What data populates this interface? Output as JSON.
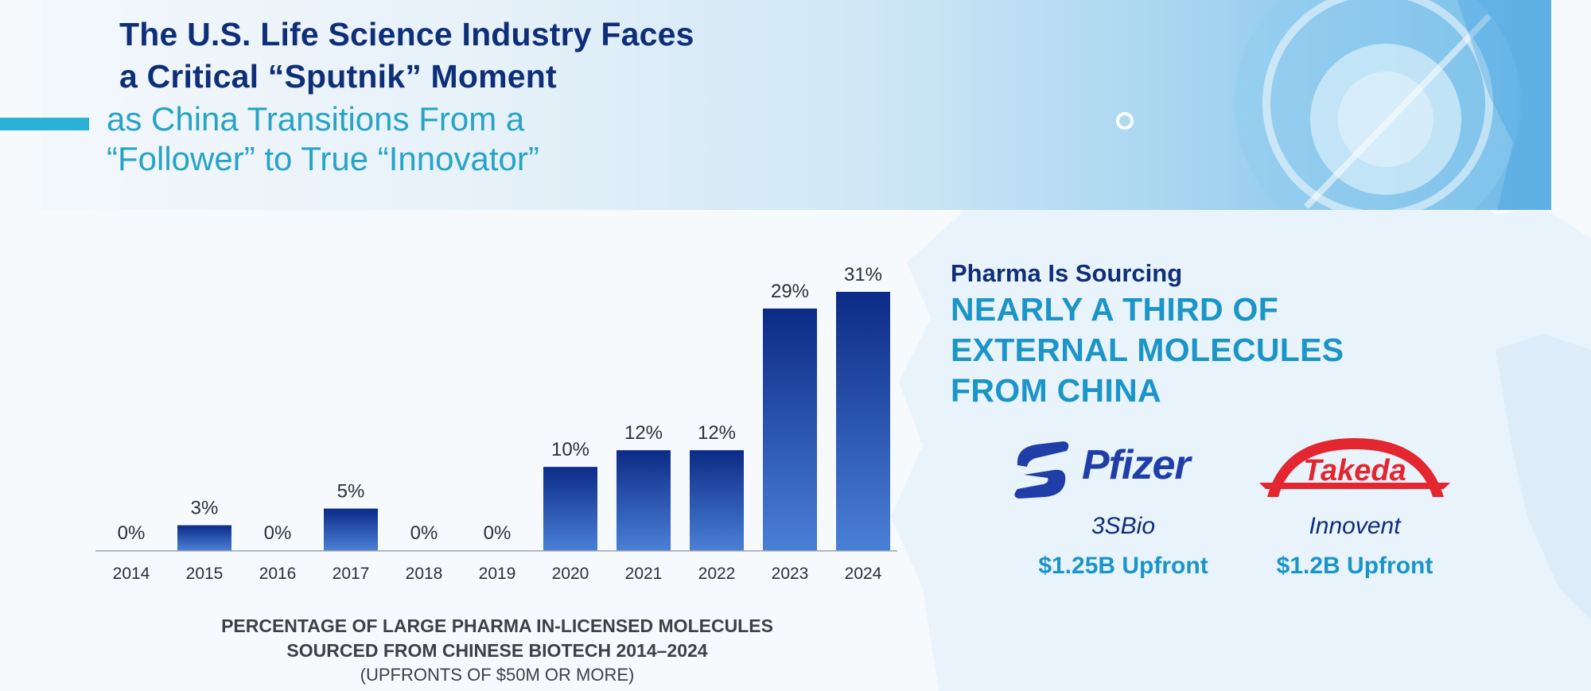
{
  "header": {
    "title_line1": "The U.S. Life Science Industry Faces",
    "title_line2": "a Critical “Sputnik” Moment",
    "subtitle_line1": "as China Transitions From a",
    "subtitle_line2": "“Follower” to True “Innovator”"
  },
  "chart_data": {
    "type": "bar",
    "categories": [
      "2014",
      "2015",
      "2016",
      "2017",
      "2018",
      "2019",
      "2020",
      "2021",
      "2022",
      "2023",
      "2024"
    ],
    "values": [
      0,
      3,
      0,
      5,
      0,
      0,
      10,
      12,
      12,
      29,
      31
    ],
    "value_labels": [
      "0%",
      "3%",
      "0%",
      "5%",
      "0%",
      "0%",
      "10%",
      "12%",
      "12%",
      "29%",
      "31%"
    ],
    "unit": "%",
    "ylim": [
      0,
      31
    ],
    "grid": false,
    "title_line1": "PERCENTAGE OF LARGE PHARMA IN-LICENSED MOLECULES",
    "title_line2": "SOURCED FROM CHINESE BIOTECH 2014–2024",
    "subtitle": "(UPFRONTS OF $50M OR MORE)",
    "colors": {
      "bar_top": "#0b2b86",
      "bar_bottom": "#4a7fd6",
      "axis": "#9aa3ae"
    }
  },
  "callout": {
    "lead": "Pharma Is Sourcing",
    "headline_line1": "NEARLY A THIRD OF",
    "headline_line2": "EXTERNAL MOLECULES",
    "headline_line3": "FROM CHINA"
  },
  "deals": [
    {
      "pharma_logo": "Pfizer",
      "partner": "3SBio",
      "upfront": "$1.25B Upfront"
    },
    {
      "pharma_logo": "Takeda",
      "partner": "Innovent",
      "upfront": "$1.2B Upfront"
    }
  ],
  "colors": {
    "navy": "#0e2e78",
    "teal": "#1b95c8",
    "pfizer_blue": "#1f3ea8",
    "takeda_red": "#e3262f"
  }
}
